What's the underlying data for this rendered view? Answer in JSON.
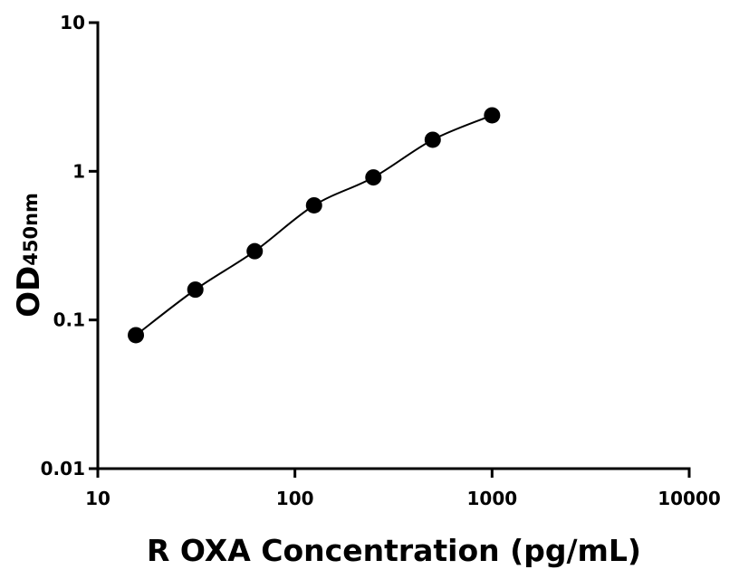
{
  "chart_data": {
    "type": "scatter",
    "xlabel": "R OXA Concentration (pg/mL)",
    "ylabel": {
      "main": "OD",
      "sub": "450nm"
    },
    "x": [
      15.6,
      31.25,
      62.5,
      125,
      250,
      500,
      1000
    ],
    "series": [
      {
        "color": "#000000",
        "values": [
          0.079,
          0.16,
          0.29,
          0.59,
          0.91,
          1.63,
          2.38
        ]
      }
    ],
    "xscale": "log",
    "yscale": "log",
    "xlim": [
      10,
      10000
    ],
    "xticks": [
      10,
      100,
      1000,
      10000
    ],
    "ylim": [
      0.01,
      10
    ],
    "yticks": [
      0.01,
      0.1,
      1,
      10
    ],
    "fit_line": true,
    "grid": false
  }
}
